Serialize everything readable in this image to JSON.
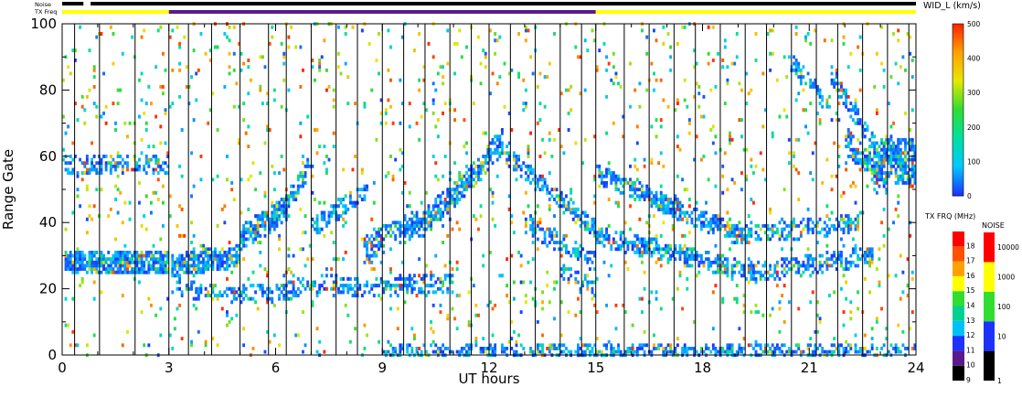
{
  "chart_data": {
    "type": "heatmap",
    "xlabel": "UT hours",
    "ylabel": "Range Gate",
    "xlim": [
      0,
      24
    ],
    "ylim": [
      0,
      100
    ],
    "x_ticks": [
      "0",
      "3",
      "6",
      "9",
      "12",
      "15",
      "18",
      "21",
      "24"
    ],
    "y_ticks": [
      "0",
      "20",
      "40",
      "60",
      "80",
      "100"
    ],
    "x_tick_values": [
      0,
      3,
      6,
      9,
      12,
      15,
      18,
      21,
      24
    ],
    "y_tick_values": [
      0,
      20,
      40,
      60,
      80,
      100
    ],
    "scan_boundaries_ut": [
      0.35,
      1.05,
      2.05,
      3.0,
      3.55,
      4.2,
      5.0,
      5.8,
      6.3,
      7.0,
      7.7,
      8.3,
      9.0,
      9.6,
      10.2,
      10.9,
      11.5,
      12.0,
      12.6,
      13.3,
      14.0,
      14.6,
      15.0,
      15.8,
      16.5,
      17.2,
      17.8,
      18.5,
      19.2,
      19.8,
      20.5,
      21.2,
      21.8,
      22.5,
      23.2,
      23.8
    ],
    "noise_label": "Noise",
    "txfreq_label": "TX Freq",
    "txfreq_bar_segments": [
      {
        "start": 0.0,
        "end": 3.0,
        "color": "#ffff00"
      },
      {
        "start": 3.0,
        "end": 15.0,
        "color": "#5a1a8c"
      },
      {
        "start": 15.0,
        "end": 24.0,
        "color": "#ffff00"
      }
    ],
    "noise_bar_segments": [
      {
        "start": 0.0,
        "end": 0.6,
        "color": "#000000"
      },
      {
        "start": 0.6,
        "end": 0.8,
        "color": "#ffffff"
      },
      {
        "start": 0.8,
        "end": 24.0,
        "color": "#000000"
      }
    ],
    "bands": [
      {
        "t0": 0.1,
        "t1": 3.0,
        "g0": 28,
        "g1": 28,
        "w": 3.5,
        "d": 0.95
      },
      {
        "t0": 3.1,
        "t1": 5.0,
        "g0": 27,
        "g1": 30,
        "w": 3.5,
        "d": 0.9
      },
      {
        "t0": 0.1,
        "t1": 3.0,
        "g0": 58,
        "g1": 57,
        "w": 3,
        "d": 0.55
      },
      {
        "t0": 3.2,
        "t1": 5.2,
        "g0": 20,
        "g1": 18,
        "w": 2.5,
        "d": 0.5
      },
      {
        "t0": 5.0,
        "t1": 6.4,
        "g0": 35,
        "g1": 45,
        "w": 4,
        "d": 0.8
      },
      {
        "t0": 6.3,
        "t1": 7.0,
        "g0": 45,
        "g1": 58,
        "w": 3,
        "d": 0.7
      },
      {
        "t0": 5.0,
        "t1": 8.0,
        "g0": 18,
        "g1": 22,
        "w": 3,
        "d": 0.5
      },
      {
        "t0": 7.0,
        "t1": 8.6,
        "g0": 38,
        "g1": 50,
        "w": 3,
        "d": 0.6
      },
      {
        "t0": 8.5,
        "t1": 10.0,
        "g0": 32,
        "g1": 40,
        "w": 4,
        "d": 0.75
      },
      {
        "t0": 10.0,
        "t1": 11.6,
        "g0": 38,
        "g1": 55,
        "w": 4,
        "d": 0.8
      },
      {
        "t0": 11.6,
        "t1": 12.4,
        "g0": 55,
        "g1": 65,
        "w": 4,
        "d": 0.8
      },
      {
        "t0": 8.0,
        "t1": 11.0,
        "g0": 20,
        "g1": 22,
        "w": 3,
        "d": 0.5
      },
      {
        "t0": 12.5,
        "t1": 15.0,
        "g0": 60,
        "g1": 38,
        "w": 3,
        "d": 0.65
      },
      {
        "t0": 13.0,
        "t1": 15.0,
        "g0": 40,
        "g1": 28,
        "w": 3,
        "d": 0.55
      },
      {
        "t0": 14.0,
        "t1": 15.0,
        "g0": 25,
        "g1": 20,
        "w": 2.5,
        "d": 0.45
      },
      {
        "t0": 15.0,
        "t1": 19.0,
        "g0": 55,
        "g1": 36,
        "w": 3,
        "d": 0.7
      },
      {
        "t0": 19.0,
        "t1": 22.5,
        "g0": 36,
        "g1": 40,
        "w": 3,
        "d": 0.6
      },
      {
        "t0": 15.0,
        "t1": 19.5,
        "g0": 36,
        "g1": 25,
        "w": 3,
        "d": 0.65
      },
      {
        "t0": 19.5,
        "t1": 22.8,
        "g0": 25,
        "g1": 30,
        "w": 3,
        "d": 0.55
      },
      {
        "t0": 20.5,
        "t1": 21.6,
        "g0": 88,
        "g1": 75,
        "w": 3,
        "d": 0.55
      },
      {
        "t0": 21.6,
        "t1": 23.0,
        "g0": 85,
        "g1": 60,
        "w": 3,
        "d": 0.65
      },
      {
        "t0": 22.8,
        "t1": 24.0,
        "g0": 60,
        "g1": 58,
        "w": 7,
        "d": 0.85
      },
      {
        "t0": 22.0,
        "t1": 23.2,
        "g0": 65,
        "g1": 52,
        "w": 4,
        "d": 0.7
      },
      {
        "t0": 9.0,
        "t1": 24.0,
        "g0": 1,
        "g1": 1,
        "w": 2,
        "d": 0.6
      }
    ],
    "speckle_density": 0.04,
    "color_scale_width": {
      "title": "WID_L (km/s)",
      "min": 0,
      "max": 500,
      "tick_values": [
        0,
        100,
        200,
        300,
        400,
        500
      ],
      "tick_labels": [
        "0",
        "100",
        "200",
        "300",
        "400",
        "500"
      ],
      "stops": [
        "#1e32ff",
        "#00c8ff",
        "#00e0a0",
        "#30dd30",
        "#e8e800",
        "#ffa000",
        "#ff2000"
      ]
    },
    "color_scale_txfreq": {
      "title": "TX FRQ (MHz)",
      "tick_labels": [
        "9",
        "10",
        "11",
        "12",
        "13",
        "14",
        "15",
        "16",
        "17",
        "18"
      ],
      "segment_colors": [
        "#000000",
        "#5a1a8c",
        "#1e32ff",
        "#00c0ff",
        "#00d090",
        "#30dd30",
        "#ffff00",
        "#ffa000",
        "#ff5000",
        "#ff0000"
      ]
    },
    "color_scale_noise": {
      "title": "NOISE",
      "tick_labels": [
        "1",
        "10",
        "100",
        "1000",
        "10000"
      ],
      "segment_colors": [
        "#000000",
        "#1e32ff",
        "#30dd30",
        "#ffff00",
        "#ff0000"
      ]
    }
  }
}
